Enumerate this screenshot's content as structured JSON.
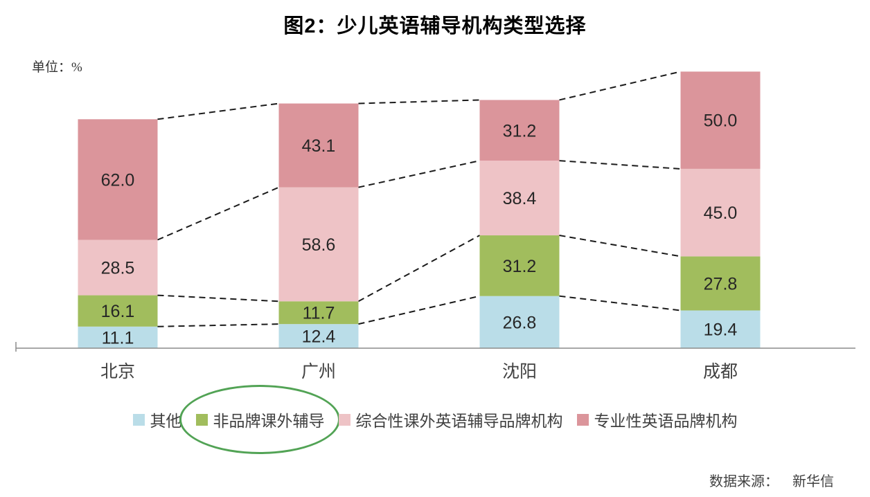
{
  "title": "图2：少儿英语辅导机构类型选择",
  "unit_label": "单位：%",
  "source": {
    "label": "数据来源：",
    "value": "新华信"
  },
  "chart_data": {
    "type": "bar",
    "stacked": true,
    "title": "图2：少儿英语辅导机构类型选择",
    "ylabel": "单位：%",
    "y_axis_visible": false,
    "grid": false,
    "legend_position": "bottom",
    "connector_lines": "dashed",
    "categories": [
      "北京",
      "广州",
      "沈阳",
      "成都"
    ],
    "series": [
      {
        "name": "其他",
        "color": "#badde8",
        "values": [
          11.1,
          12.4,
          26.8,
          19.4
        ]
      },
      {
        "name": "非品牌课外辅导",
        "color": "#a1bd5d",
        "values": [
          16.1,
          11.7,
          31.2,
          27.8
        ]
      },
      {
        "name": "综合性课外英语辅导品牌机构",
        "color": "#eec3c6",
        "values": [
          28.5,
          58.6,
          38.4,
          45.0
        ]
      },
      {
        "name": "专业性英语品牌机构",
        "color": "#db959b",
        "values": [
          62.0,
          43.1,
          31.2,
          50.0
        ]
      }
    ],
    "annotations": [
      {
        "type": "ellipse",
        "target": "legend:非品牌课外辅导",
        "color": "#52a355"
      }
    ],
    "colors": {
      "value_label": "#262626",
      "connector": "#1a1a1a",
      "axis": "#8b8b8b"
    }
  }
}
